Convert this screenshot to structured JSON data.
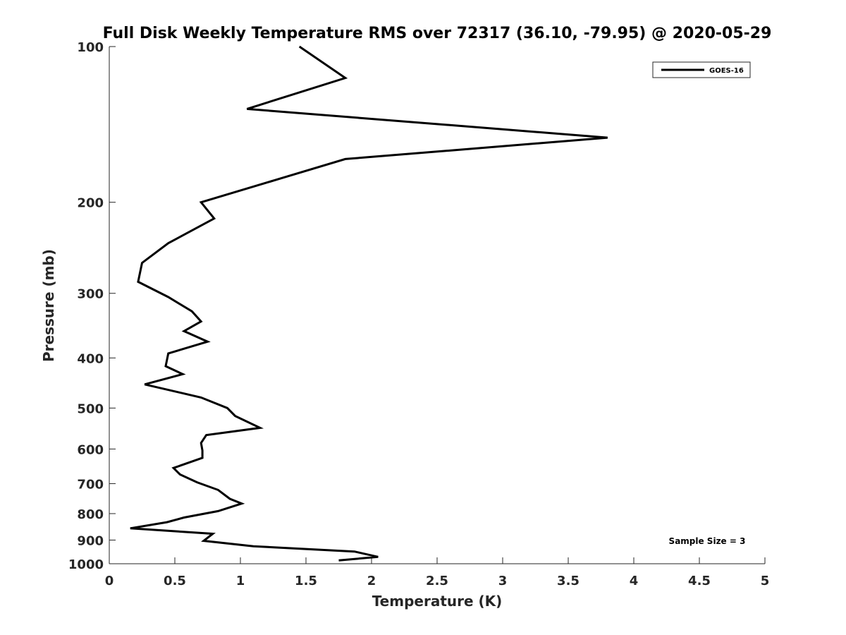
{
  "chart_data": {
    "type": "line",
    "title": "Full Disk Weekly Temperature RMS over 72317 (36.10, -79.95) @ 2020-05-29",
    "xlabel": "Temperature (K)",
    "ylabel": "Pressure (mb)",
    "xlim": [
      0,
      5
    ],
    "ylim": [
      1000,
      100
    ],
    "y_scale": "log",
    "y_reversed": true,
    "xticks": [
      "0",
      "0.5",
      "1",
      "1.5",
      "2",
      "2.5",
      "3",
      "3.5",
      "4",
      "4.5",
      "5"
    ],
    "yticks": [
      "100",
      "200",
      "300",
      "400",
      "500",
      "600",
      "700",
      "800",
      "900",
      "1000"
    ],
    "grid": false,
    "legend_position": "top-right",
    "annotation": "Sample Size = 3",
    "series": [
      {
        "name": "GOES-16",
        "color": "#000000",
        "points": [
          [
            1.45,
            100
          ],
          [
            1.8,
            115
          ],
          [
            1.05,
            132
          ],
          [
            3.8,
            150
          ],
          [
            1.8,
            165
          ],
          [
            0.7,
            200
          ],
          [
            0.8,
            215
          ],
          [
            0.45,
            240
          ],
          [
            0.25,
            262
          ],
          [
            0.22,
            285
          ],
          [
            0.45,
            305
          ],
          [
            0.63,
            325
          ],
          [
            0.7,
            340
          ],
          [
            0.57,
            355
          ],
          [
            0.75,
            372
          ],
          [
            0.45,
            392
          ],
          [
            0.43,
            415
          ],
          [
            0.56,
            430
          ],
          [
            0.27,
            450
          ],
          [
            0.7,
            477
          ],
          [
            0.9,
            500
          ],
          [
            0.96,
            518
          ],
          [
            1.15,
            546
          ],
          [
            0.74,
            564
          ],
          [
            0.7,
            584
          ],
          [
            0.71,
            604
          ],
          [
            0.71,
            624
          ],
          [
            0.49,
            653
          ],
          [
            0.54,
            672
          ],
          [
            0.67,
            696
          ],
          [
            0.83,
            720
          ],
          [
            0.92,
            749
          ],
          [
            1.01,
            765
          ],
          [
            0.83,
            791
          ],
          [
            0.57,
            814
          ],
          [
            0.44,
            831
          ],
          [
            0.16,
            854
          ],
          [
            0.79,
            875
          ],
          [
            0.72,
            903
          ],
          [
            1.1,
            925
          ],
          [
            1.87,
            947
          ],
          [
            2.05,
            970
          ],
          [
            1.75,
            985
          ]
        ]
      }
    ]
  }
}
